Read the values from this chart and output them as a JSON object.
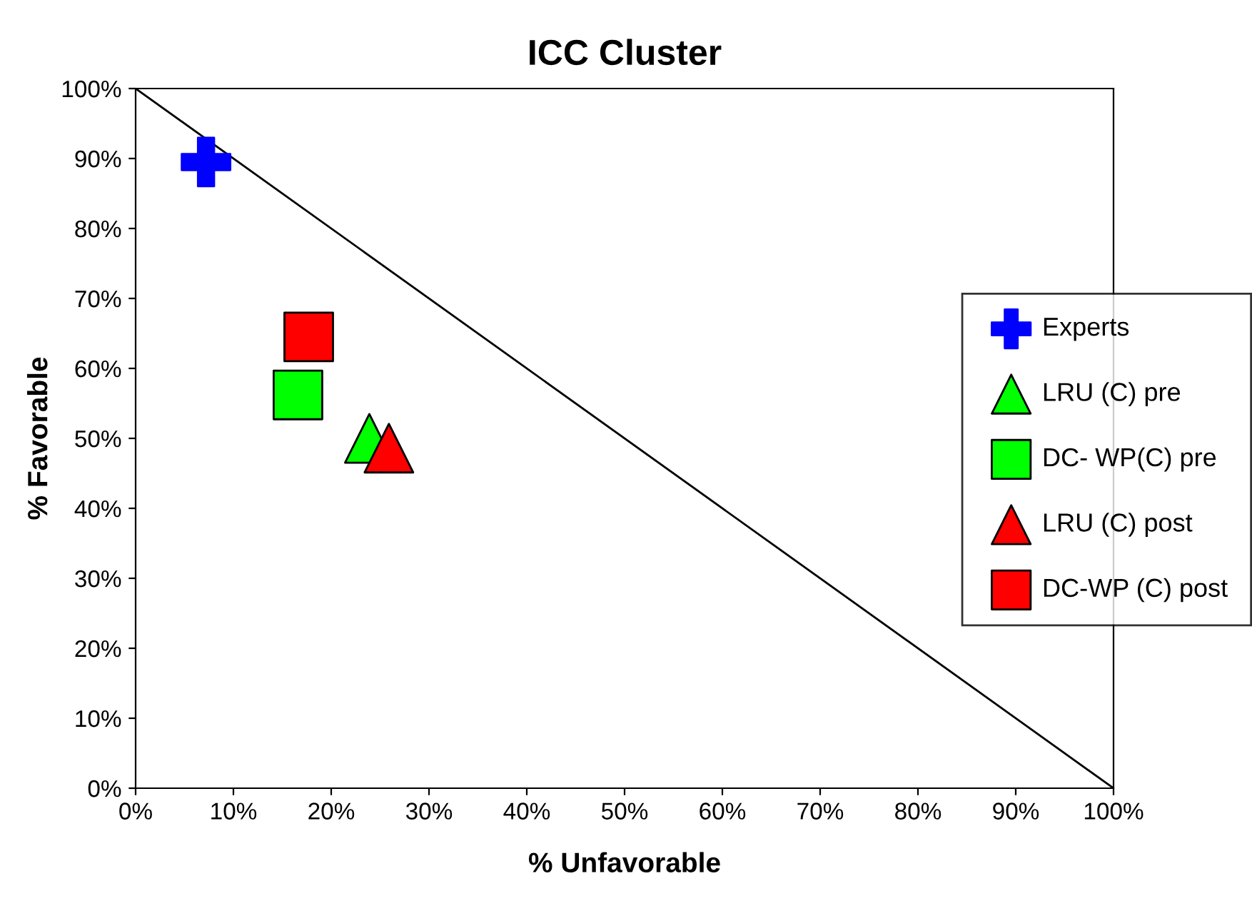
{
  "chart_data": {
    "type": "scatter",
    "title": "ICC Cluster",
    "xlabel": "% Unfavorable",
    "ylabel": "% Favorable",
    "xlim": [
      0,
      100
    ],
    "ylim": [
      0,
      100
    ],
    "xticks": [
      {
        "value": 0,
        "label": "0%"
      },
      {
        "value": 10,
        "label": "10%"
      },
      {
        "value": 20,
        "label": "20%"
      },
      {
        "value": 30,
        "label": "30%"
      },
      {
        "value": 40,
        "label": "40%"
      },
      {
        "value": 50,
        "label": "50%"
      },
      {
        "value": 60,
        "label": "60%"
      },
      {
        "value": 70,
        "label": "70%"
      },
      {
        "value": 80,
        "label": "80%"
      },
      {
        "value": 90,
        "label": "90%"
      },
      {
        "value": 100,
        "label": "100%"
      }
    ],
    "yticks": [
      {
        "value": 0,
        "label": "0%"
      },
      {
        "value": 10,
        "label": "10%"
      },
      {
        "value": 20,
        "label": "20%"
      },
      {
        "value": 30,
        "label": "30%"
      },
      {
        "value": 40,
        "label": "40%"
      },
      {
        "value": 50,
        "label": "50%"
      },
      {
        "value": 60,
        "label": "60%"
      },
      {
        "value": 70,
        "label": "70%"
      },
      {
        "value": 80,
        "label": "80%"
      },
      {
        "value": 90,
        "label": "90%"
      },
      {
        "value": 100,
        "label": "100%"
      }
    ],
    "grid": false,
    "legend": "right",
    "series": [
      {
        "type": "line",
        "color": "#000000",
        "x": [
          0,
          100
        ],
        "values": [
          100,
          0
        ],
        "marker": "none"
      },
      {
        "name": "Experts",
        "color": "#0000ff",
        "marker": "cross",
        "x": [
          7.2
        ],
        "values": [
          89.5
        ]
      },
      {
        "name": "LRU (C) pre",
        "color": "#00ff00",
        "marker": "triangle",
        "x": [
          23.9
        ],
        "values": [
          50.0
        ]
      },
      {
        "name": "DC- WP(C) pre",
        "color": "#00ff00",
        "marker": "square",
        "x": [
          16.6
        ],
        "values": [
          56.2
        ]
      },
      {
        "name": "LRU (C) post",
        "color": "#ff0000",
        "marker": "triangle",
        "x": [
          25.9
        ],
        "values": [
          48.6
        ]
      },
      {
        "name": "DC-WP (C) post",
        "color": "#ff0000",
        "marker": "square",
        "x": [
          17.7
        ],
        "values": [
          64.5
        ]
      }
    ]
  }
}
